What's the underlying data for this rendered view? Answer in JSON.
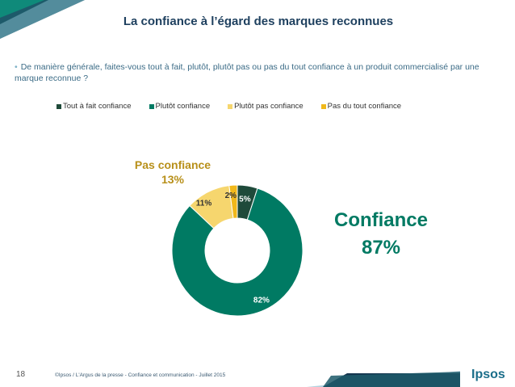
{
  "header": {
    "title": "La confiance à l’égard des marques reconnues",
    "question": "De manière générale, faites-vous tout à fait, plutôt, plutôt pas ou pas du tout confiance à un produit commercialisé par une marque reconnue ?"
  },
  "chart_data": {
    "type": "pie",
    "subtype": "donut",
    "start": "top, clockwise",
    "categories": [
      "Tout à fait confiance",
      "Plutôt confiance",
      "Plutôt pas confiance",
      "Pas du tout confiance"
    ],
    "values": [
      5,
      82,
      11,
      2
    ],
    "value_labels": [
      "5%",
      "82%",
      "11%",
      "2%"
    ],
    "colors": [
      "#1f4a3a",
      "#007a63",
      "#f6d66e",
      "#f0b81b"
    ],
    "label_colors": [
      "#ffffff",
      "#ffffff",
      "#333333",
      "#333333"
    ],
    "legend_placement": "top",
    "groups": {
      "pas_confiance": {
        "label": "Pas confiance",
        "value": "13%"
      },
      "confiance": {
        "label": "Confiance",
        "value": "87%"
      }
    }
  },
  "footer": {
    "page_number": "18",
    "source": "©Ipsos / L'Argus de la presse - Confiance et communication - Juillet 2015",
    "logo": "Ipsos"
  },
  "colors": {
    "accent_dark_teal": "#1d5a6a",
    "accent_navy": "#15364f",
    "accent_green": "#007a63",
    "accent_gold": "#b8901a"
  }
}
